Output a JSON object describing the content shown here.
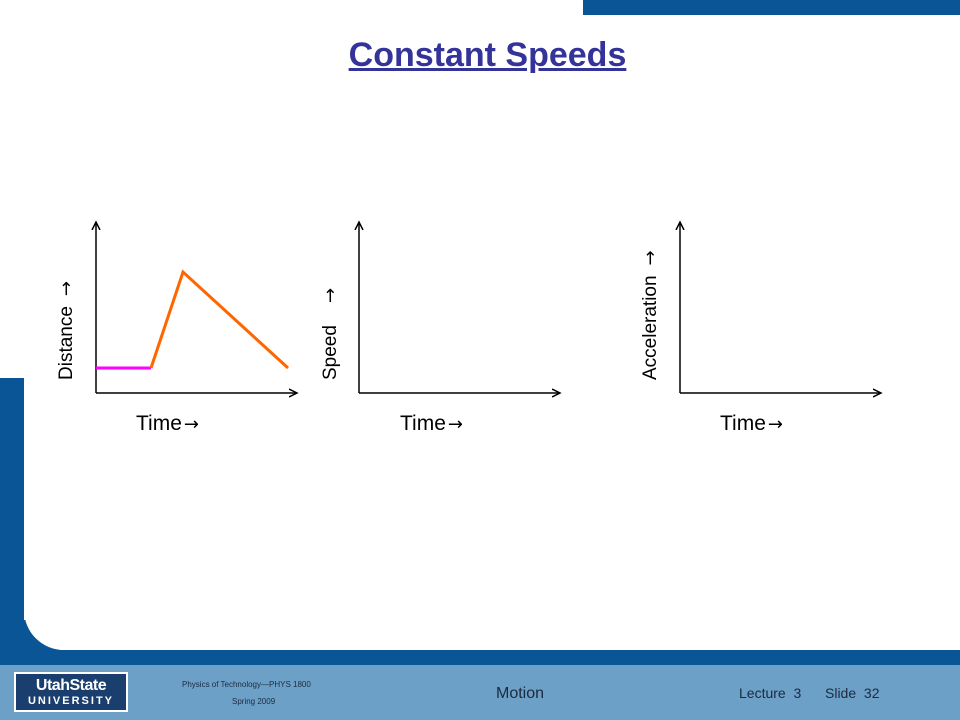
{
  "title": "Constant Speeds",
  "colors": {
    "title": "#333399",
    "frame_blue": "#0a5595",
    "footer_blue": "#6da0c7",
    "flat_segment": "#ff00ff",
    "slope_segments": "#ff6600"
  },
  "graphs": [
    {
      "ylabel": "Distance",
      "xlabel": "Time",
      "arrow_glyph": "→"
    },
    {
      "ylabel": "Speed",
      "xlabel": "Time",
      "arrow_glyph": "→"
    },
    {
      "ylabel": "Acceleration",
      "xlabel": "Time",
      "arrow_glyph": "→"
    }
  ],
  "footer": {
    "logo_line1": "UtahState",
    "logo_line2": "UNIVERSITY",
    "course": "Physics of Technology—PHYS 1800",
    "term": "Spring 2009",
    "topic": "Motion",
    "lecture": "Lecture  3",
    "slide": "Slide  32"
  }
}
